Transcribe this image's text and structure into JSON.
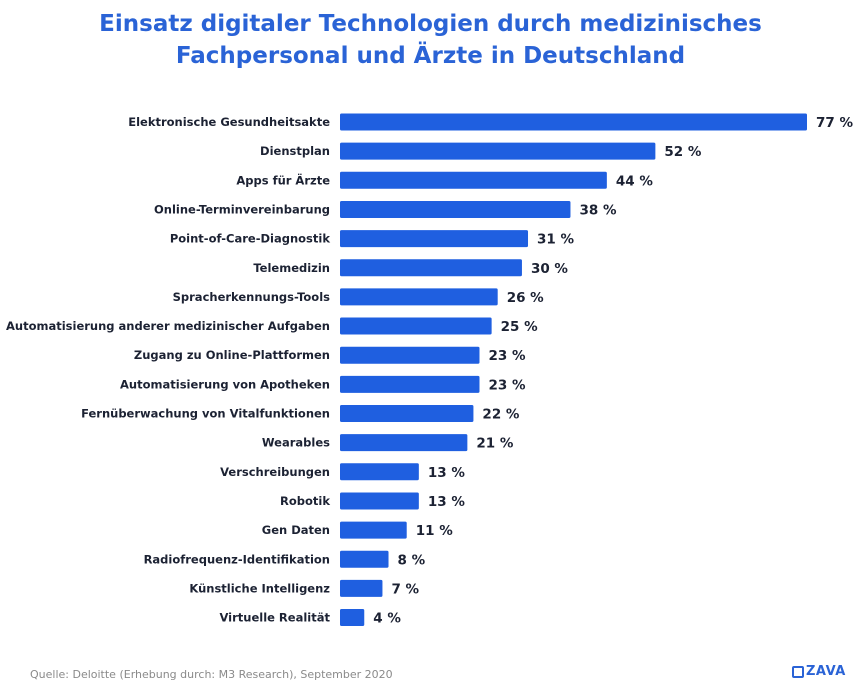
{
  "chart_data": {
    "type": "bar",
    "orientation": "horizontal",
    "title": "Einsatz digitaler Technologien durch medizinisches Fachpersonal und Ärzte in Deutschland",
    "title_lines": [
      "Einsatz digitaler Technologien durch medizinisches",
      "Fachpersonal und Ärzte in Deutschland"
    ],
    "xlabel": "",
    "ylabel": "",
    "value_suffix": " %",
    "xlim": [
      0,
      77
    ],
    "grid": false,
    "legend": "none",
    "bar_color": "#1f5fe0",
    "categories": [
      "Elektronische Gesundheitsakte",
      "Dienstplan",
      "Apps für Ärzte",
      "Online-Terminvereinbarung",
      "Point-of-Care-Diagnostik",
      "Telemedizin",
      "Spracherkennungs-Tools",
      "Automatisierung anderer medizinischer Aufgaben",
      "Zugang zu Online-Plattformen",
      "Automatisierung von Apotheken",
      "Fernüberwachung von Vitalfunktionen",
      "Wearables",
      "Verschreibungen",
      "Robotik",
      "Gen Daten",
      "Radiofrequenz-Identifikation",
      "Künstliche Intelligenz",
      "Virtuelle Realität"
    ],
    "values": [
      77,
      52,
      44,
      38,
      31,
      30,
      26,
      25,
      23,
      23,
      22,
      21,
      13,
      13,
      11,
      8,
      7,
      4
    ]
  },
  "footer": {
    "source": "Quelle: Deloitte (Erhebung durch: M3 Research), September 2020",
    "logo": "ZAVA"
  },
  "colors": {
    "title": "#2a63d6",
    "text": "#1c2233",
    "source": "#8a8a8a"
  }
}
